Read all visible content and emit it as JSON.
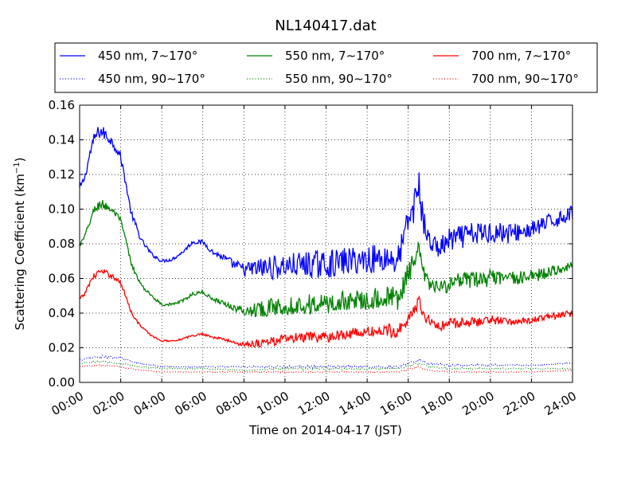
{
  "chart_data": {
    "type": "line",
    "title": "NL140417.dat",
    "xlabel": "Time on 2014-04-17 (JST)",
    "ylabel_main": "Scattering Coefficient (km",
    "ylabel_sup": "−1",
    "ylabel_close": ")",
    "xlim_hours": [
      0,
      24
    ],
    "ylim": [
      0.0,
      0.16
    ],
    "yticks": [
      "0.00",
      "0.02",
      "0.04",
      "0.06",
      "0.08",
      "0.10",
      "0.12",
      "0.14",
      "0.16"
    ],
    "xticks": [
      "00:00",
      "02:00",
      "04:00",
      "06:00",
      "08:00",
      "10:00",
      "12:00",
      "14:00",
      "16:00",
      "18:00",
      "20:00",
      "22:00",
      "24:00"
    ],
    "grid": true,
    "legend_position": "top, above plot",
    "series": [
      {
        "name": "450 nm, 7∼170°",
        "color": "#0000ff",
        "style": "solid",
        "x": [
          0,
          0.25,
          0.5,
          0.75,
          1,
          1.25,
          1.5,
          1.75,
          2,
          2.25,
          2.5,
          2.75,
          3,
          3.5,
          4,
          4.5,
          5,
          5.5,
          6,
          6.5,
          7,
          7.5,
          8,
          9,
          10,
          11,
          12,
          13,
          14,
          15,
          15.5,
          16,
          16.25,
          16.5,
          16.75,
          17,
          17.5,
          18,
          19,
          20,
          21,
          22,
          23,
          24
        ],
        "y": [
          0.112,
          0.118,
          0.132,
          0.142,
          0.145,
          0.143,
          0.14,
          0.136,
          0.13,
          0.115,
          0.098,
          0.09,
          0.082,
          0.074,
          0.07,
          0.071,
          0.075,
          0.081,
          0.081,
          0.075,
          0.072,
          0.068,
          0.065,
          0.066,
          0.067,
          0.068,
          0.068,
          0.07,
          0.071,
          0.072,
          0.07,
          0.093,
          0.1,
          0.115,
          0.092,
          0.082,
          0.077,
          0.082,
          0.085,
          0.087,
          0.086,
          0.088,
          0.093,
          0.098
        ],
        "noise": [
          0.002,
          0.002,
          0.003,
          0.004,
          0.004,
          0.004,
          0.003,
          0.003,
          0.003,
          0.002,
          0.002,
          0.002,
          0.0015,
          0.0012,
          0.001,
          0.001,
          0.001,
          0.0012,
          0.0012,
          0.0015,
          0.002,
          0.003,
          0.004,
          0.007,
          0.007,
          0.008,
          0.008,
          0.008,
          0.008,
          0.009,
          0.009,
          0.008,
          0.009,
          0.01,
          0.008,
          0.006,
          0.006,
          0.007,
          0.007,
          0.007,
          0.006,
          0.005,
          0.005,
          0.004
        ]
      },
      {
        "name": "550 nm, 7∼170°",
        "color": "#008000",
        "style": "solid",
        "x": [
          0,
          0.25,
          0.5,
          0.75,
          1,
          1.25,
          1.5,
          1.75,
          2,
          2.25,
          2.5,
          2.75,
          3,
          3.5,
          4,
          4.5,
          5,
          5.5,
          6,
          6.5,
          7,
          7.5,
          8,
          9,
          10,
          11,
          12,
          13,
          14,
          15,
          15.5,
          16,
          16.25,
          16.5,
          16.75,
          17,
          17.5,
          18,
          19,
          20,
          21,
          22,
          23,
          24
        ],
        "y": [
          0.079,
          0.084,
          0.093,
          0.1,
          0.103,
          0.102,
          0.1,
          0.097,
          0.093,
          0.082,
          0.069,
          0.062,
          0.056,
          0.05,
          0.045,
          0.045,
          0.047,
          0.051,
          0.052,
          0.048,
          0.046,
          0.043,
          0.041,
          0.043,
          0.044,
          0.045,
          0.045,
          0.047,
          0.048,
          0.049,
          0.048,
          0.063,
          0.068,
          0.075,
          0.063,
          0.057,
          0.054,
          0.057,
          0.059,
          0.06,
          0.06,
          0.061,
          0.064,
          0.068
        ],
        "noise": [
          0.0015,
          0.0015,
          0.002,
          0.003,
          0.003,
          0.003,
          0.002,
          0.002,
          0.002,
          0.0015,
          0.0015,
          0.0012,
          0.001,
          0.0008,
          0.0008,
          0.0008,
          0.0008,
          0.001,
          0.001,
          0.001,
          0.0015,
          0.002,
          0.003,
          0.005,
          0.005,
          0.006,
          0.006,
          0.006,
          0.006,
          0.007,
          0.007,
          0.006,
          0.007,
          0.007,
          0.006,
          0.004,
          0.004,
          0.005,
          0.005,
          0.005,
          0.004,
          0.004,
          0.003,
          0.003
        ]
      },
      {
        "name": "700 nm, 7∼170°",
        "color": "#ff0000",
        "style": "solid",
        "x": [
          0,
          0.25,
          0.5,
          0.75,
          1,
          1.25,
          1.5,
          1.75,
          2,
          2.25,
          2.5,
          2.75,
          3,
          3.5,
          4,
          4.5,
          5,
          5.5,
          6,
          6.5,
          7,
          7.5,
          8,
          9,
          10,
          11,
          12,
          13,
          14,
          15,
          15.5,
          16,
          16.25,
          16.5,
          16.75,
          17,
          17.5,
          18,
          19,
          20,
          21,
          22,
          23,
          24
        ],
        "y": [
          0.048,
          0.051,
          0.058,
          0.062,
          0.064,
          0.063,
          0.062,
          0.06,
          0.057,
          0.05,
          0.041,
          0.036,
          0.032,
          0.027,
          0.024,
          0.024,
          0.025,
          0.027,
          0.028,
          0.026,
          0.025,
          0.023,
          0.022,
          0.023,
          0.025,
          0.026,
          0.026,
          0.028,
          0.029,
          0.03,
          0.03,
          0.037,
          0.04,
          0.047,
          0.04,
          0.036,
          0.032,
          0.034,
          0.035,
          0.036,
          0.035,
          0.036,
          0.038,
          0.04
        ],
        "noise": [
          0.001,
          0.001,
          0.0015,
          0.002,
          0.002,
          0.002,
          0.0015,
          0.0015,
          0.0015,
          0.001,
          0.001,
          0.0008,
          0.0008,
          0.0006,
          0.0005,
          0.0005,
          0.0005,
          0.0006,
          0.0006,
          0.0006,
          0.0008,
          0.001,
          0.0015,
          0.003,
          0.003,
          0.003,
          0.003,
          0.003,
          0.003,
          0.004,
          0.004,
          0.004,
          0.004,
          0.004,
          0.004,
          0.003,
          0.003,
          0.003,
          0.003,
          0.003,
          0.002,
          0.002,
          0.002,
          0.002
        ]
      },
      {
        "name": "450 nm, 90∼170°",
        "color": "#0000ff",
        "style": "dotted",
        "x": [
          0,
          1,
          2,
          3,
          4,
          6,
          8,
          10,
          12,
          14,
          15.5,
          16.5,
          17,
          18,
          20,
          22,
          24
        ],
        "y": [
          0.013,
          0.015,
          0.014,
          0.011,
          0.009,
          0.009,
          0.009,
          0.009,
          0.009,
          0.009,
          0.009,
          0.013,
          0.011,
          0.01,
          0.01,
          0.01,
          0.011
        ],
        "noise": [
          0.0005,
          0.0008,
          0.0007,
          0.0005,
          0.0004,
          0.0004,
          0.0005,
          0.0007,
          0.0007,
          0.0007,
          0.0007,
          0.0008,
          0.0006,
          0.0006,
          0.0005,
          0.0004,
          0.0004
        ]
      },
      {
        "name": "550 nm, 90∼170°",
        "color": "#008000",
        "style": "dotted",
        "x": [
          0,
          1,
          2,
          3,
          4,
          6,
          8,
          10,
          12,
          14,
          15.5,
          16.5,
          17,
          18,
          20,
          22,
          24
        ],
        "y": [
          0.011,
          0.012,
          0.011,
          0.009,
          0.008,
          0.008,
          0.007,
          0.008,
          0.008,
          0.008,
          0.008,
          0.011,
          0.009,
          0.008,
          0.008,
          0.008,
          0.008
        ],
        "noise": [
          0.0004,
          0.0006,
          0.0005,
          0.0004,
          0.0003,
          0.0003,
          0.0004,
          0.0005,
          0.0005,
          0.0005,
          0.0005,
          0.0006,
          0.0005,
          0.0005,
          0.0004,
          0.0003,
          0.0003
        ]
      },
      {
        "name": "700 nm, 90∼170°",
        "color": "#ff0000",
        "style": "dotted",
        "x": [
          0,
          1,
          2,
          3,
          4,
          6,
          8,
          10,
          12,
          14,
          15.5,
          16.5,
          17,
          18,
          20,
          22,
          24
        ],
        "y": [
          0.009,
          0.01,
          0.009,
          0.007,
          0.006,
          0.006,
          0.006,
          0.006,
          0.006,
          0.006,
          0.006,
          0.009,
          0.007,
          0.006,
          0.006,
          0.006,
          0.007
        ],
        "noise": [
          0.0003,
          0.0005,
          0.0004,
          0.0003,
          0.0002,
          0.0002,
          0.0003,
          0.0004,
          0.0004,
          0.0004,
          0.0004,
          0.0005,
          0.0004,
          0.0004,
          0.0003,
          0.0002,
          0.0002
        ]
      }
    ]
  }
}
